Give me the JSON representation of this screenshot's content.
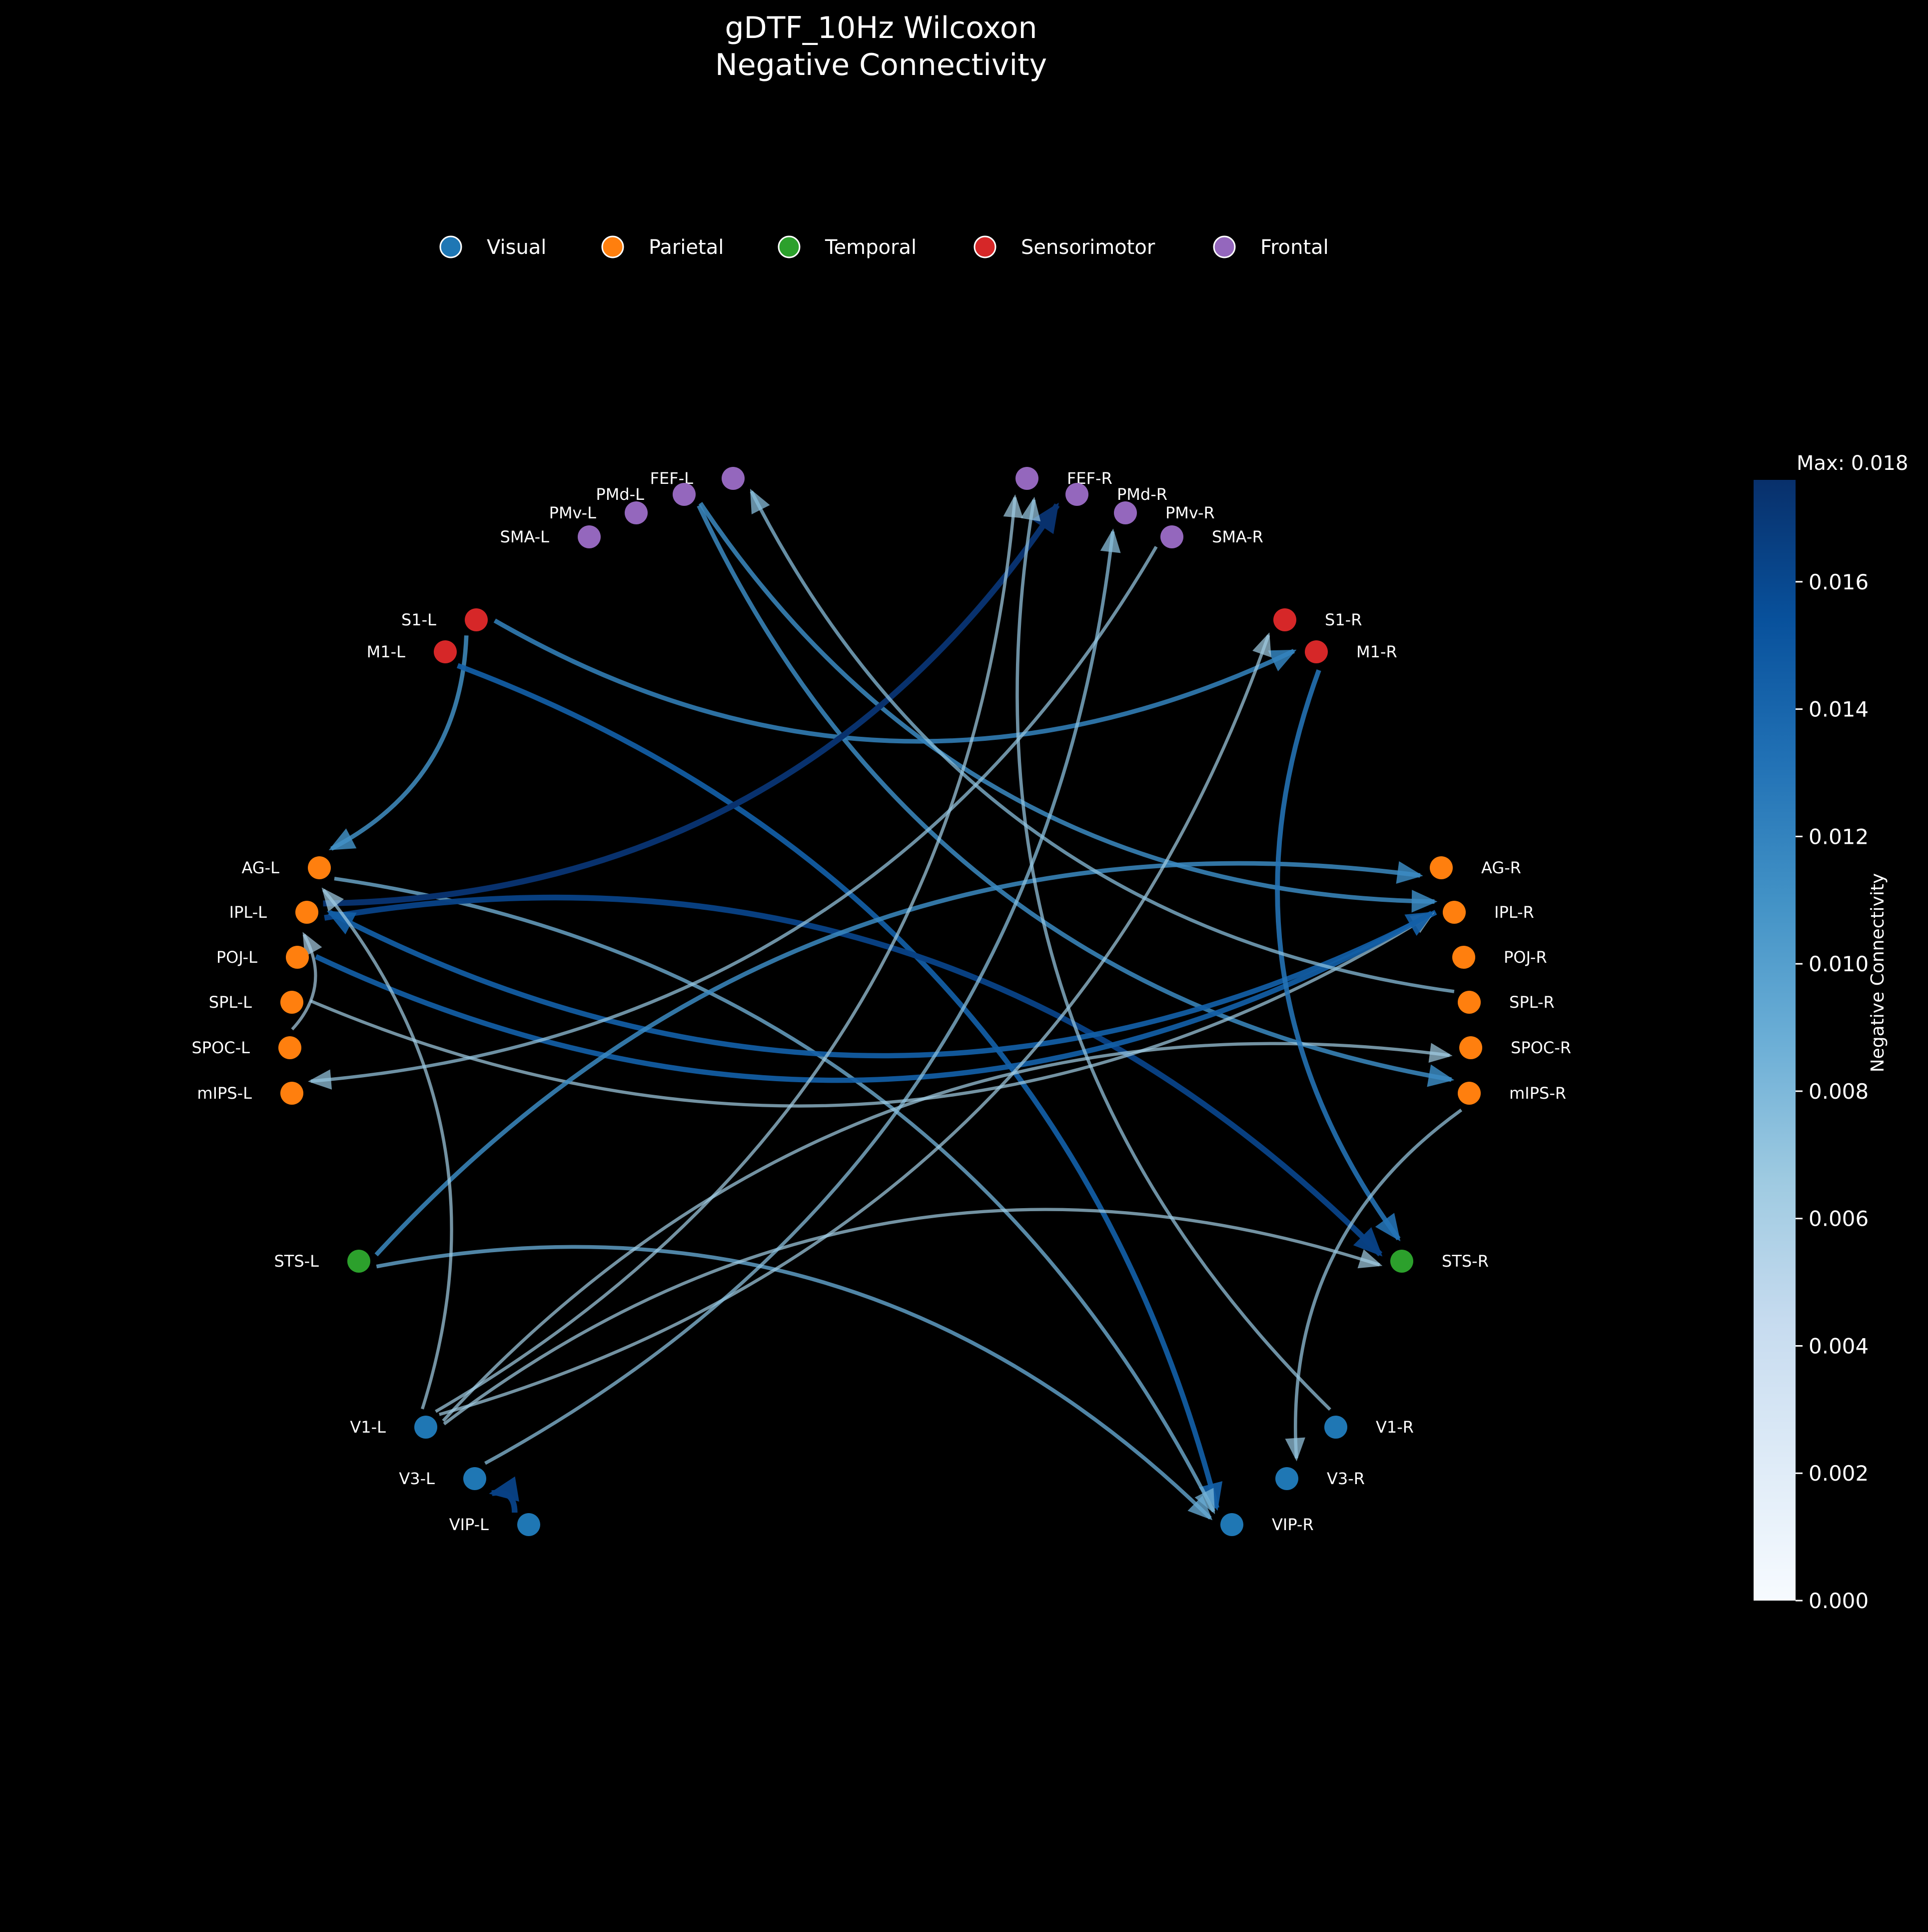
{
  "title": {
    "line1": "gDTF_10Hz Wilcoxon",
    "line2": "Negative Connectivity"
  },
  "legend": [
    {
      "label": "Visual",
      "color": "#1f77b4"
    },
    {
      "label": "Parietal",
      "color": "#ff7f0e"
    },
    {
      "label": "Temporal",
      "color": "#2ca02c"
    },
    {
      "label": "Sensorimotor",
      "color": "#d62728"
    },
    {
      "label": "Frontal",
      "color": "#9467bd"
    }
  ],
  "nodes": [
    {
      "id": "FEF-L",
      "group": "Frontal"
    },
    {
      "id": "PMd-L",
      "group": "Frontal"
    },
    {
      "id": "PMv-L",
      "group": "Frontal"
    },
    {
      "id": "SMA-L",
      "group": "Frontal"
    },
    {
      "id": "S1-L",
      "group": "Sensorimotor"
    },
    {
      "id": "M1-L",
      "group": "Sensorimotor"
    },
    {
      "id": "AG-L",
      "group": "Parietal"
    },
    {
      "id": "IPL-L",
      "group": "Parietal"
    },
    {
      "id": "POJ-L",
      "group": "Parietal"
    },
    {
      "id": "SPL-L",
      "group": "Parietal"
    },
    {
      "id": "SPOC-L",
      "group": "Parietal"
    },
    {
      "id": "mIPS-L",
      "group": "Parietal"
    },
    {
      "id": "STS-L",
      "group": "Temporal"
    },
    {
      "id": "V1-L",
      "group": "Visual"
    },
    {
      "id": "V3-L",
      "group": "Visual"
    },
    {
      "id": "VIP-L",
      "group": "Visual"
    },
    {
      "id": "FEF-R",
      "group": "Frontal"
    },
    {
      "id": "PMd-R",
      "group": "Frontal"
    },
    {
      "id": "PMv-R",
      "group": "Frontal"
    },
    {
      "id": "SMA-R",
      "group": "Frontal"
    },
    {
      "id": "S1-R",
      "group": "Sensorimotor"
    },
    {
      "id": "M1-R",
      "group": "Sensorimotor"
    },
    {
      "id": "AG-R",
      "group": "Parietal"
    },
    {
      "id": "IPL-R",
      "group": "Parietal"
    },
    {
      "id": "POJ-R",
      "group": "Parietal"
    },
    {
      "id": "SPL-R",
      "group": "Parietal"
    },
    {
      "id": "SPOC-R",
      "group": "Parietal"
    },
    {
      "id": "mIPS-R",
      "group": "Parietal"
    },
    {
      "id": "STS-R",
      "group": "Temporal"
    },
    {
      "id": "V1-R",
      "group": "Visual"
    },
    {
      "id": "V3-R",
      "group": "Visual"
    },
    {
      "id": "VIP-R",
      "group": "Visual"
    }
  ],
  "edges": [
    {
      "source": "PMd-L",
      "target": "IPL-R",
      "value": 0.0115
    },
    {
      "source": "PMd-L",
      "target": "mIPS-R",
      "value": 0.0115
    },
    {
      "source": "S1-L",
      "target": "AG-L",
      "value": 0.011
    },
    {
      "source": "S1-L",
      "target": "M1-R",
      "value": 0.012
    },
    {
      "source": "M1-L",
      "target": "VIP-R",
      "value": 0.0145
    },
    {
      "source": "AG-L",
      "target": "VIP-R",
      "value": 0.0085
    },
    {
      "source": "IPL-L",
      "target": "PMd-R",
      "value": 0.0175
    },
    {
      "source": "IPL-L",
      "target": "STS-R",
      "value": 0.0165
    },
    {
      "source": "IPL-R",
      "target": "IPL-L",
      "value": 0.0145
    },
    {
      "source": "SPL-L",
      "target": "IPL-R",
      "value": 0.0065
    },
    {
      "source": "SPOC-L",
      "target": "IPL-L",
      "value": 0.006
    },
    {
      "source": "POJ-L",
      "target": "IPL-R",
      "value": 0.0145
    },
    {
      "source": "STS-L",
      "target": "AG-R",
      "value": 0.0115
    },
    {
      "source": "STS-L",
      "target": "VIP-R",
      "value": 0.009
    },
    {
      "source": "V1-L",
      "target": "AG-L",
      "value": 0.0065
    },
    {
      "source": "V1-L",
      "target": "FEF-R",
      "value": 0.0065
    },
    {
      "source": "V1-L",
      "target": "S1-R",
      "value": 0.0065
    },
    {
      "source": "V1-L",
      "target": "SPOC-R",
      "value": 0.0065
    },
    {
      "source": "V1-L",
      "target": "STS-R",
      "value": 0.0065
    },
    {
      "source": "V3-L",
      "target": "PMv-R",
      "value": 0.0075
    },
    {
      "source": "VIP-L",
      "target": "V3-L",
      "value": 0.0165
    },
    {
      "source": "M1-R",
      "target": "STS-R",
      "value": 0.013
    },
    {
      "source": "SPL-R",
      "target": "FEF-L",
      "value": 0.0075
    },
    {
      "source": "V1-R",
      "target": "FEF-R",
      "value": 0.007
    },
    {
      "source": "mIPS-R",
      "target": "V3-R",
      "value": 0.007
    },
    {
      "source": "SMA-R",
      "target": "mIPS-L",
      "value": 0.007
    }
  ],
  "colorbar": {
    "label": "Negative Connectivity",
    "max_label": "Max: 0.018",
    "min": 0,
    "max": 0.0176,
    "ticks": [
      "0.000",
      "0.002",
      "0.004",
      "0.006",
      "0.008",
      "0.010",
      "0.012",
      "0.014",
      "0.016"
    ]
  }
}
